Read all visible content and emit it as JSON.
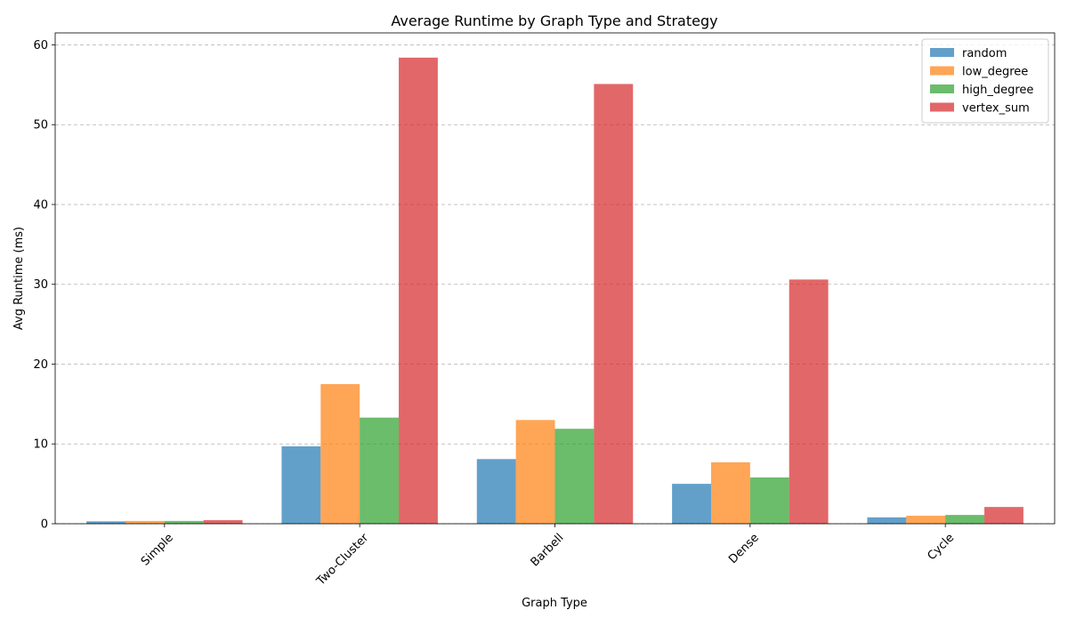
{
  "chart_data": {
    "type": "bar",
    "title": "Average Runtime by Graph Type and Strategy",
    "xlabel": "Graph Type",
    "ylabel": "Avg Runtime (ms)",
    "categories": [
      "Simple",
      "Two-Cluster",
      "Barbell",
      "Dense",
      "Cycle"
    ],
    "series": [
      {
        "name": "random",
        "color": "#1f77b4",
        "values": [
          0.3,
          9.7,
          8.1,
          5.0,
          0.8
        ]
      },
      {
        "name": "low_degree",
        "color": "#ff7f0e",
        "values": [
          0.35,
          17.5,
          13.0,
          7.7,
          1.0
        ]
      },
      {
        "name": "high_degree",
        "color": "#2ca02c",
        "values": [
          0.35,
          13.3,
          11.9,
          5.8,
          1.1
        ]
      },
      {
        "name": "vertex_sum",
        "color": "#d62728",
        "values": [
          0.45,
          58.4,
          55.1,
          30.6,
          2.1
        ]
      }
    ],
    "ylim": [
      0,
      61.5
    ],
    "yticks": [
      0,
      10,
      20,
      30,
      40,
      50,
      60
    ],
    "grid": true,
    "grid_axis": "y",
    "legend_position": "top-right",
    "bar_opacity": 0.7
  }
}
